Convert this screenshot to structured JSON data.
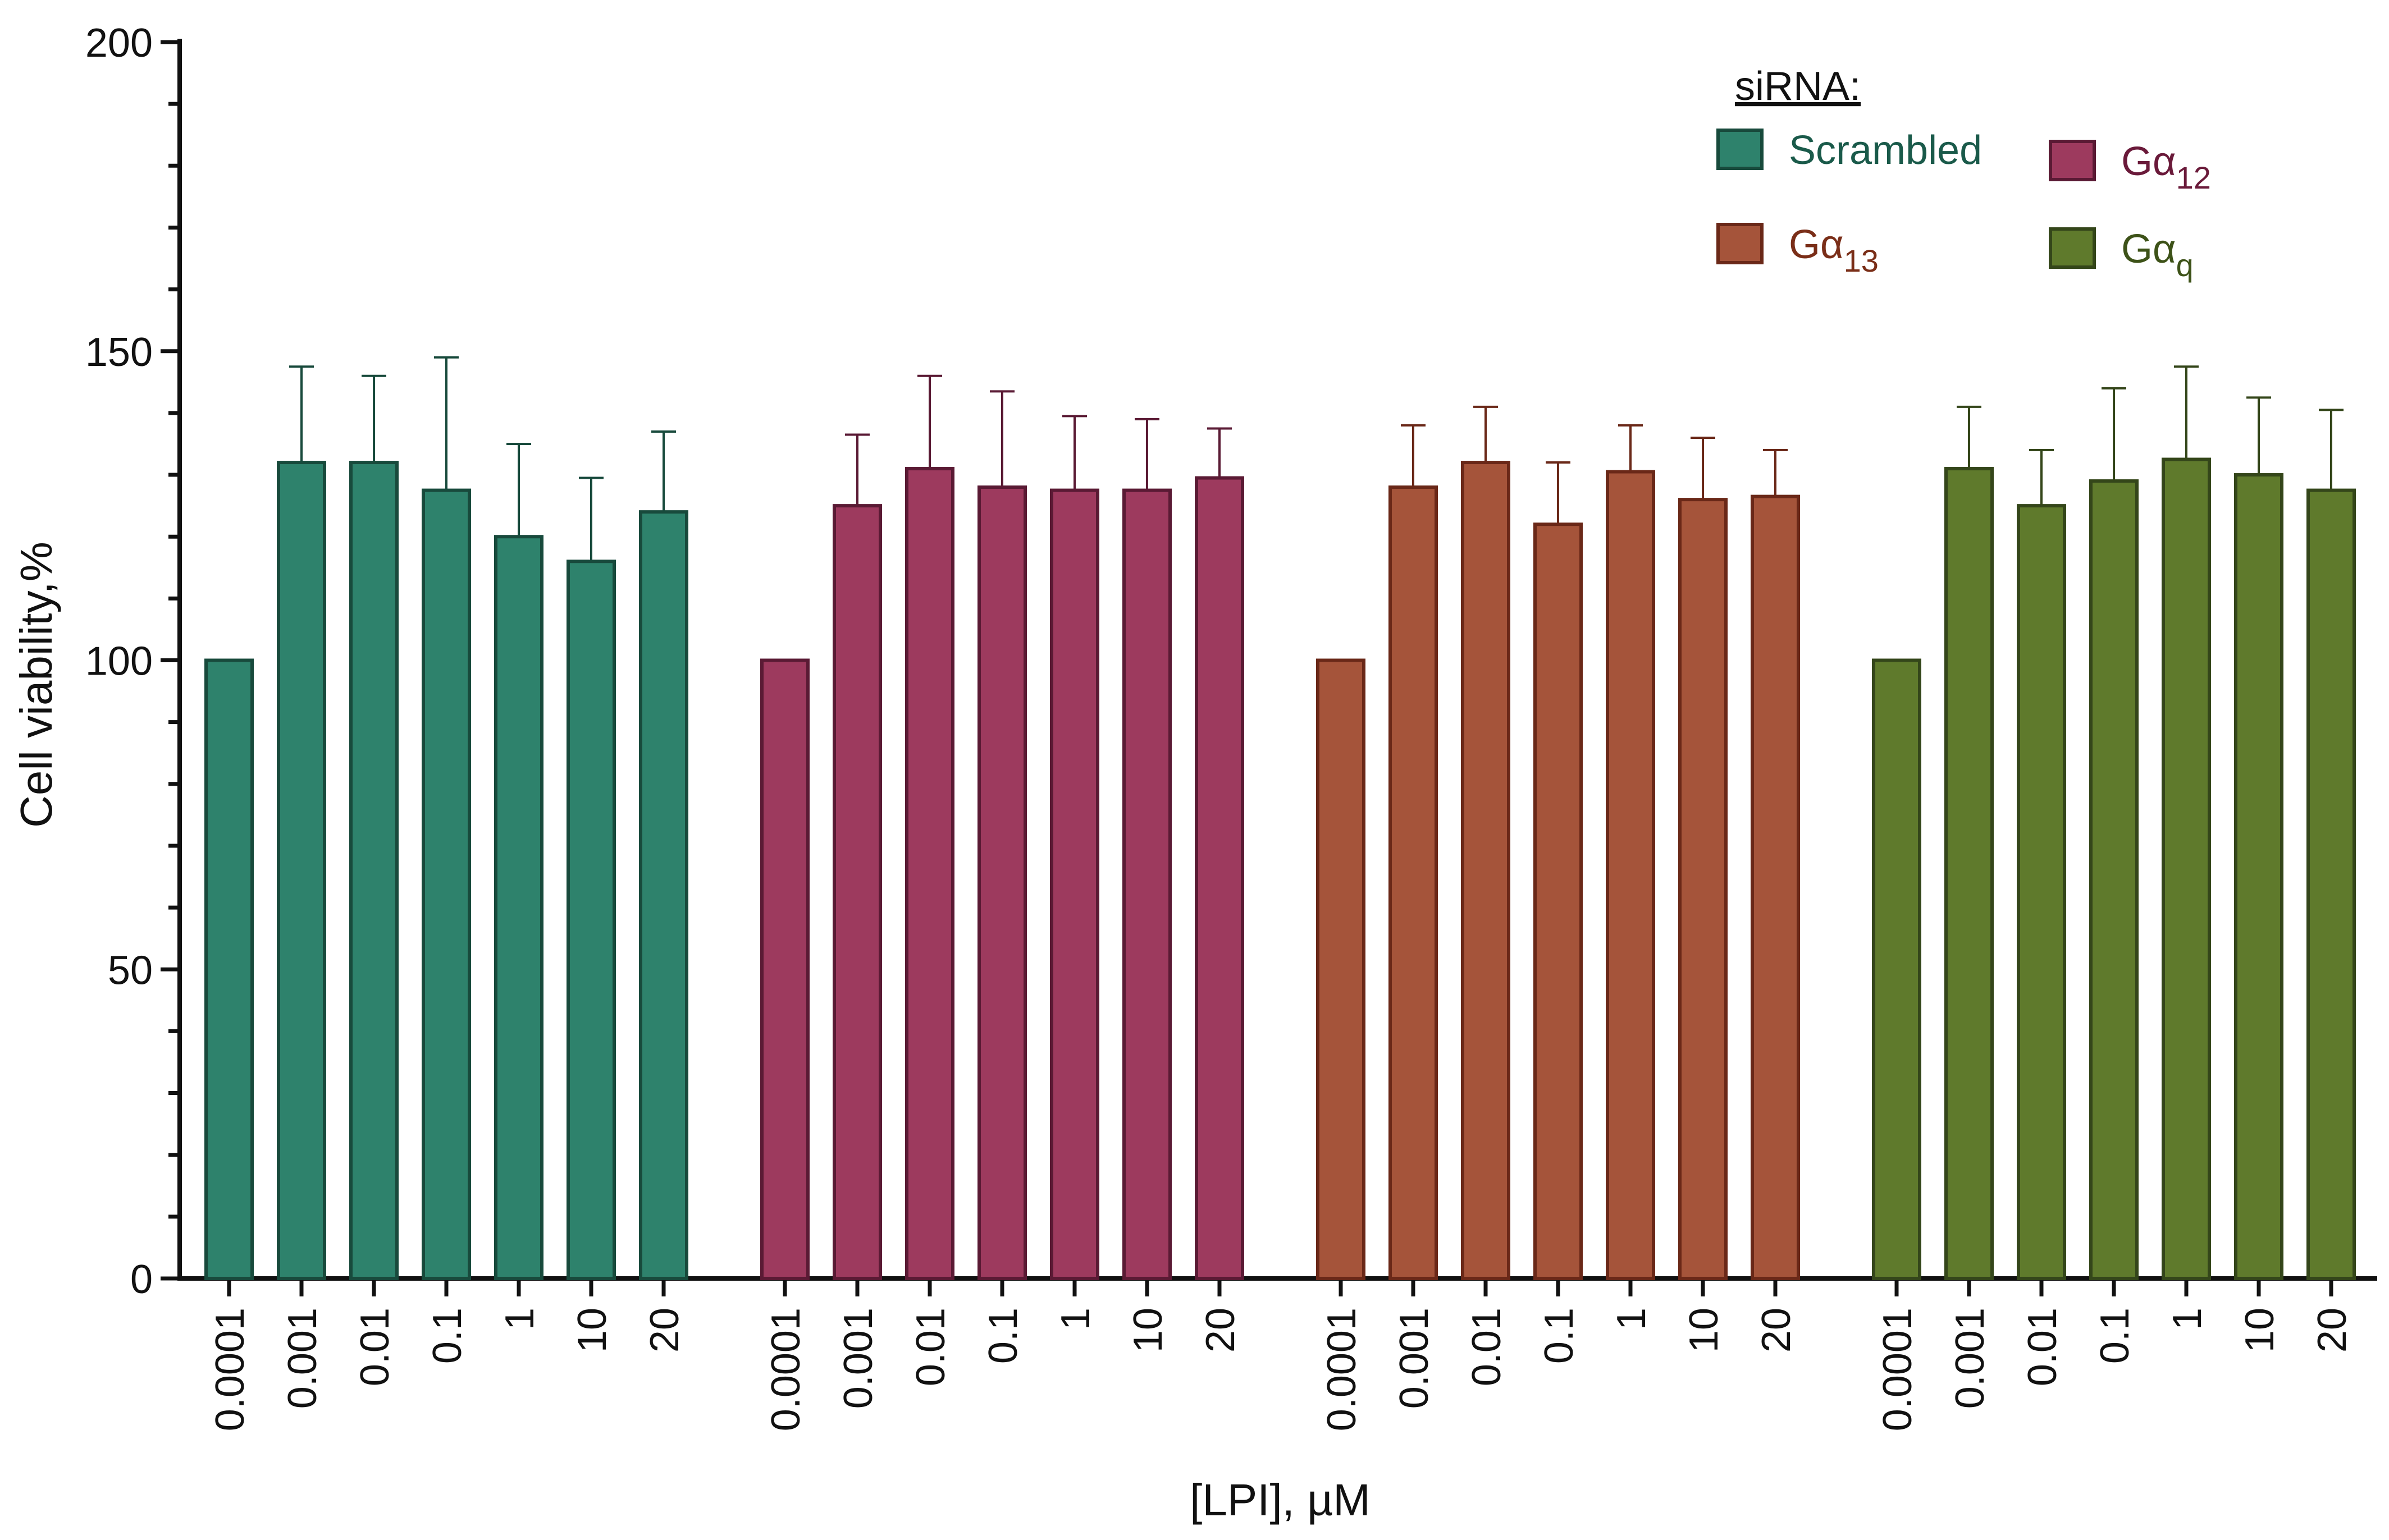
{
  "chart_data": {
    "type": "bar",
    "title": "",
    "xlabel": "[LPI], µM",
    "ylabel": "Cell viability,%",
    "ylim": [
      0,
      200
    ],
    "yticks": [
      0,
      50,
      100,
      150,
      200
    ],
    "y_minor_step": 10,
    "grid": false,
    "legend_position": "top-right",
    "legend_title": "siRNA:",
    "categories": [
      "0.0001",
      "0.001",
      "0.01",
      "0.1",
      "1",
      "10",
      "20"
    ],
    "series": [
      {
        "name": "Scrambled",
        "legend_label": "Scrambled",
        "color": "#2e826c",
        "edge": "#184a3c",
        "label_color": "#1a5a4a",
        "values": [
          100,
          132,
          132,
          127.5,
          120,
          116,
          124
        ],
        "errors": [
          0,
          15.5,
          14,
          21.5,
          15,
          13.5,
          13
        ]
      },
      {
        "name": "Gα12",
        "legend_label": "Gα",
        "legend_sub": "12",
        "color": "#9d3a5e",
        "edge": "#5a1a34",
        "label_color": "#6a1a3a",
        "values": [
          100,
          125,
          131,
          128,
          127.5,
          127.5,
          129.5
        ],
        "errors": [
          0,
          11.5,
          15,
          15.5,
          12,
          11.5,
          8
        ]
      },
      {
        "name": "Gα13",
        "legend_label": "Gα",
        "legend_sub": "13",
        "color": "#a5543a",
        "edge": "#6a2818",
        "label_color": "#7a2e18",
        "values": [
          100,
          128,
          132,
          122,
          130.5,
          126,
          126.5
        ],
        "errors": [
          0,
          10,
          9,
          10,
          7.5,
          10,
          7.5
        ]
      },
      {
        "name": "Gαq",
        "legend_label": "Gα",
        "legend_sub": "q",
        "color": "#5f7a2c",
        "edge": "#34461a",
        "label_color": "#3d5218",
        "values": [
          100,
          131,
          125,
          129,
          132.5,
          130,
          127.5
        ],
        "errors": [
          0,
          10,
          9,
          15,
          15,
          12.5,
          13
        ]
      }
    ]
  }
}
